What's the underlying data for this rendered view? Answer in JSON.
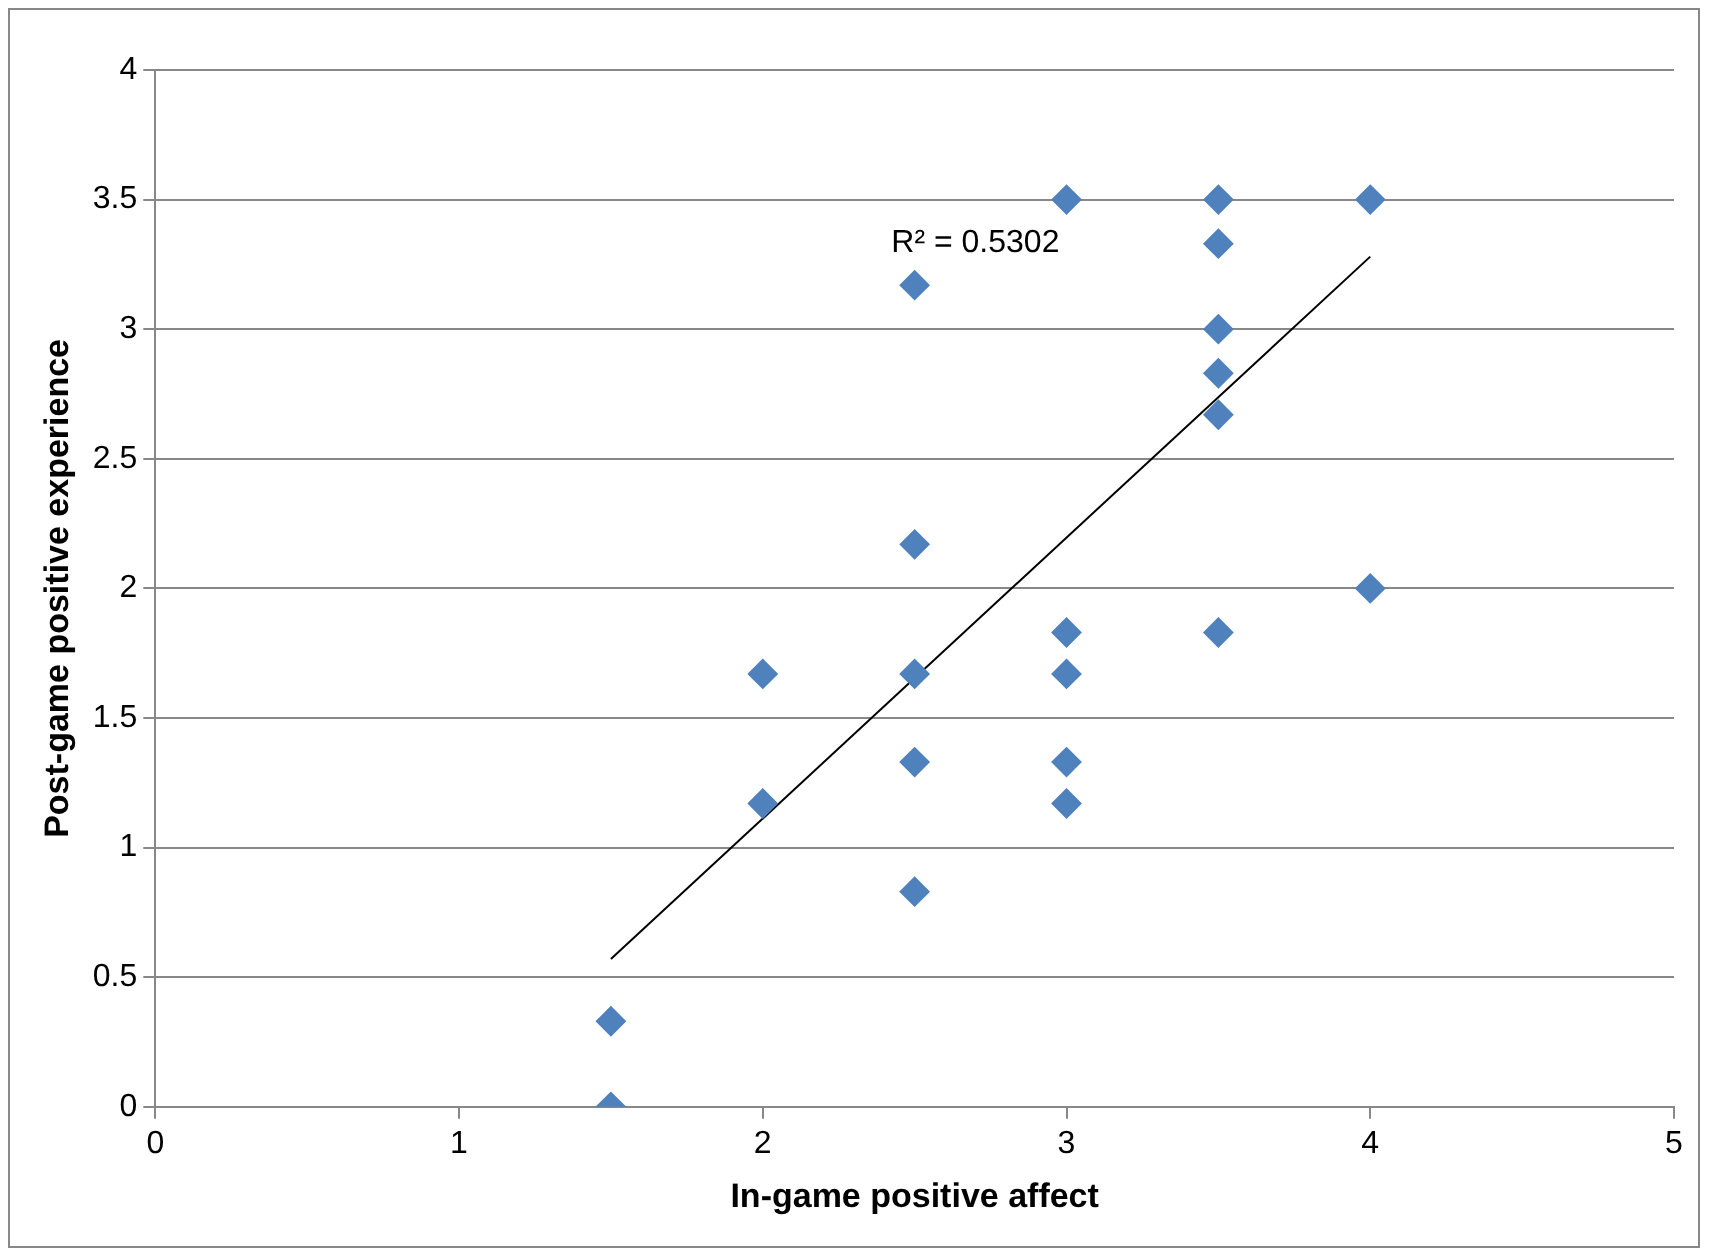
{
  "chart_data": {
    "type": "scatter",
    "xlabel": "In-game positive affect",
    "ylabel": "Post-game positive experience",
    "xlim": [
      0,
      5
    ],
    "xticks": [
      0,
      1,
      2,
      3,
      4,
      5
    ],
    "ylim": [
      0,
      4
    ],
    "yticks": [
      0,
      0.5,
      1,
      1.5,
      2,
      2.5,
      3,
      3.5,
      4
    ],
    "grid": "y",
    "legend": false,
    "series": [
      {
        "type": "scatter",
        "marker": "diamond",
        "color": "#4f81bd",
        "x": [
          1.5,
          1.5,
          2,
          2,
          2.5,
          2.5,
          2.5,
          2.5,
          2.5,
          3,
          3,
          3,
          3,
          3,
          3.5,
          3.5,
          3.5,
          3.5,
          3.5,
          3.5,
          4,
          4
        ],
        "values": [
          0,
          0.33,
          1.17,
          1.67,
          0.83,
          1.33,
          1.67,
          2.17,
          3.17,
          1.17,
          1.33,
          1.67,
          1.83,
          3.5,
          1.83,
          2.67,
          2.83,
          3,
          3.33,
          3.5,
          2,
          3.5
        ]
      },
      {
        "type": "line",
        "marker": "none",
        "color": "#000000",
        "x": [
          1.5,
          4
        ],
        "values": [
          0.57,
          3.28
        ]
      }
    ],
    "annotations": [
      "R² = 0.5302"
    ]
  }
}
